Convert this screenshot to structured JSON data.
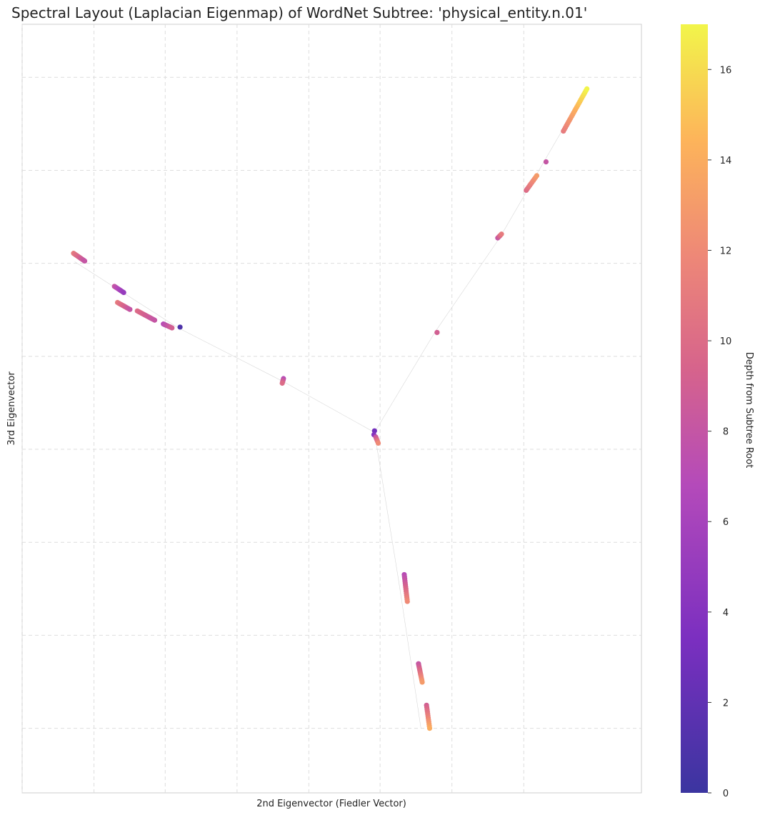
{
  "chart_data": {
    "type": "scatter",
    "title": "Spectral Layout (Laplacian Eigenmap) of WordNet Subtree: 'physical_entity.n.01'",
    "xlabel": "2nd Eigenvector (Fiedler Vector)",
    "ylabel": "3rd Eigenvector",
    "xlim": [
      0,
      100
    ],
    "ylim": [
      0,
      100
    ],
    "grid": true,
    "x_tick_labels_visible": false,
    "y_tick_labels_visible": false,
    "colormap": "plasma",
    "colorbar": {
      "label": "Depth from Subtree Root",
      "min": 0,
      "max": 17,
      "ticks": [
        "0",
        "2",
        "4",
        "6",
        "8",
        "10",
        "12",
        "14",
        "16"
      ]
    },
    "edges": [
      [
        [
          56.9,
          46.9
        ],
        [
          42.2,
          53.5
        ]
      ],
      [
        [
          42.2,
          53.5
        ],
        [
          25.2,
          60.5
        ]
      ],
      [
        [
          25.2,
          60.5
        ],
        [
          8.5,
          69.1
        ]
      ],
      [
        [
          56.9,
          46.9
        ],
        [
          66.7,
          60.0
        ]
      ],
      [
        [
          66.7,
          60.0
        ],
        [
          77.1,
          72.2
        ]
      ],
      [
        [
          77.1,
          72.2
        ],
        [
          91.1,
          91.6
        ]
      ],
      [
        [
          56.9,
          46.9
        ],
        [
          60.8,
          27.6
        ]
      ],
      [
        [
          60.8,
          27.6
        ],
        [
          64.4,
          8.4
        ]
      ]
    ],
    "clusters": [
      {
        "from": [
          8.3,
          70.2
        ],
        "to": [
          10.1,
          69.2
        ],
        "depth_from": 11,
        "depth_to": 8,
        "count": 14
      },
      {
        "from": [
          14.9,
          65.9
        ],
        "to": [
          16.4,
          65.1
        ],
        "depth_from": 8,
        "depth_to": 5,
        "count": 8
      },
      {
        "from": [
          15.4,
          63.8
        ],
        "to": [
          17.4,
          62.9
        ],
        "depth_from": 11,
        "depth_to": 8,
        "count": 10
      },
      {
        "from": [
          18.6,
          62.7
        ],
        "to": [
          21.4,
          61.5
        ],
        "depth_from": 10,
        "depth_to": 8,
        "count": 14
      },
      {
        "from": [
          22.8,
          61.0
        ],
        "to": [
          24.2,
          60.5
        ],
        "depth_from": 7,
        "depth_to": 9,
        "count": 8
      },
      {
        "from": [
          25.5,
          60.6
        ],
        "to": [
          25.5,
          60.6
        ],
        "depth_from": 1,
        "depth_to": 1,
        "count": 1
      },
      {
        "from": [
          42.2,
          53.9
        ],
        "to": [
          42.0,
          53.3
        ],
        "depth_from": 7,
        "depth_to": 10,
        "count": 4
      },
      {
        "from": [
          56.9,
          47.1
        ],
        "to": [
          56.8,
          46.6
        ],
        "depth_from": 3,
        "depth_to": 4,
        "count": 2
      },
      {
        "from": [
          57.1,
          46.3
        ],
        "to": [
          57.5,
          45.5
        ],
        "depth_from": 8,
        "depth_to": 12,
        "count": 5
      },
      {
        "from": [
          67.0,
          59.9
        ],
        "to": [
          67.0,
          59.9
        ],
        "depth_from": 9,
        "depth_to": 9,
        "count": 2
      },
      {
        "from": [
          76.8,
          72.2
        ],
        "to": [
          77.4,
          72.7
        ],
        "depth_from": 8,
        "depth_to": 11,
        "count": 4
      },
      {
        "from": [
          81.4,
          78.4
        ],
        "to": [
          83.1,
          80.3
        ],
        "depth_from": 10,
        "depth_to": 13,
        "count": 10
      },
      {
        "from": [
          84.6,
          82.1
        ],
        "to": [
          84.6,
          82.1
        ],
        "depth_from": 8,
        "depth_to": 8,
        "count": 1
      },
      {
        "from": [
          87.4,
          86.1
        ],
        "to": [
          91.2,
          91.6
        ],
        "depth_from": 11,
        "depth_to": 17,
        "count": 24
      },
      {
        "from": [
          61.7,
          28.4
        ],
        "to": [
          62.2,
          24.9
        ],
        "depth_from": 7,
        "depth_to": 12,
        "count": 14
      },
      {
        "from": [
          64.0,
          16.8
        ],
        "to": [
          64.6,
          14.4
        ],
        "depth_from": 8,
        "depth_to": 13,
        "count": 12
      },
      {
        "from": [
          65.3,
          11.4
        ],
        "to": [
          65.8,
          8.4
        ],
        "depth_from": 9,
        "depth_to": 14,
        "count": 12
      }
    ]
  }
}
